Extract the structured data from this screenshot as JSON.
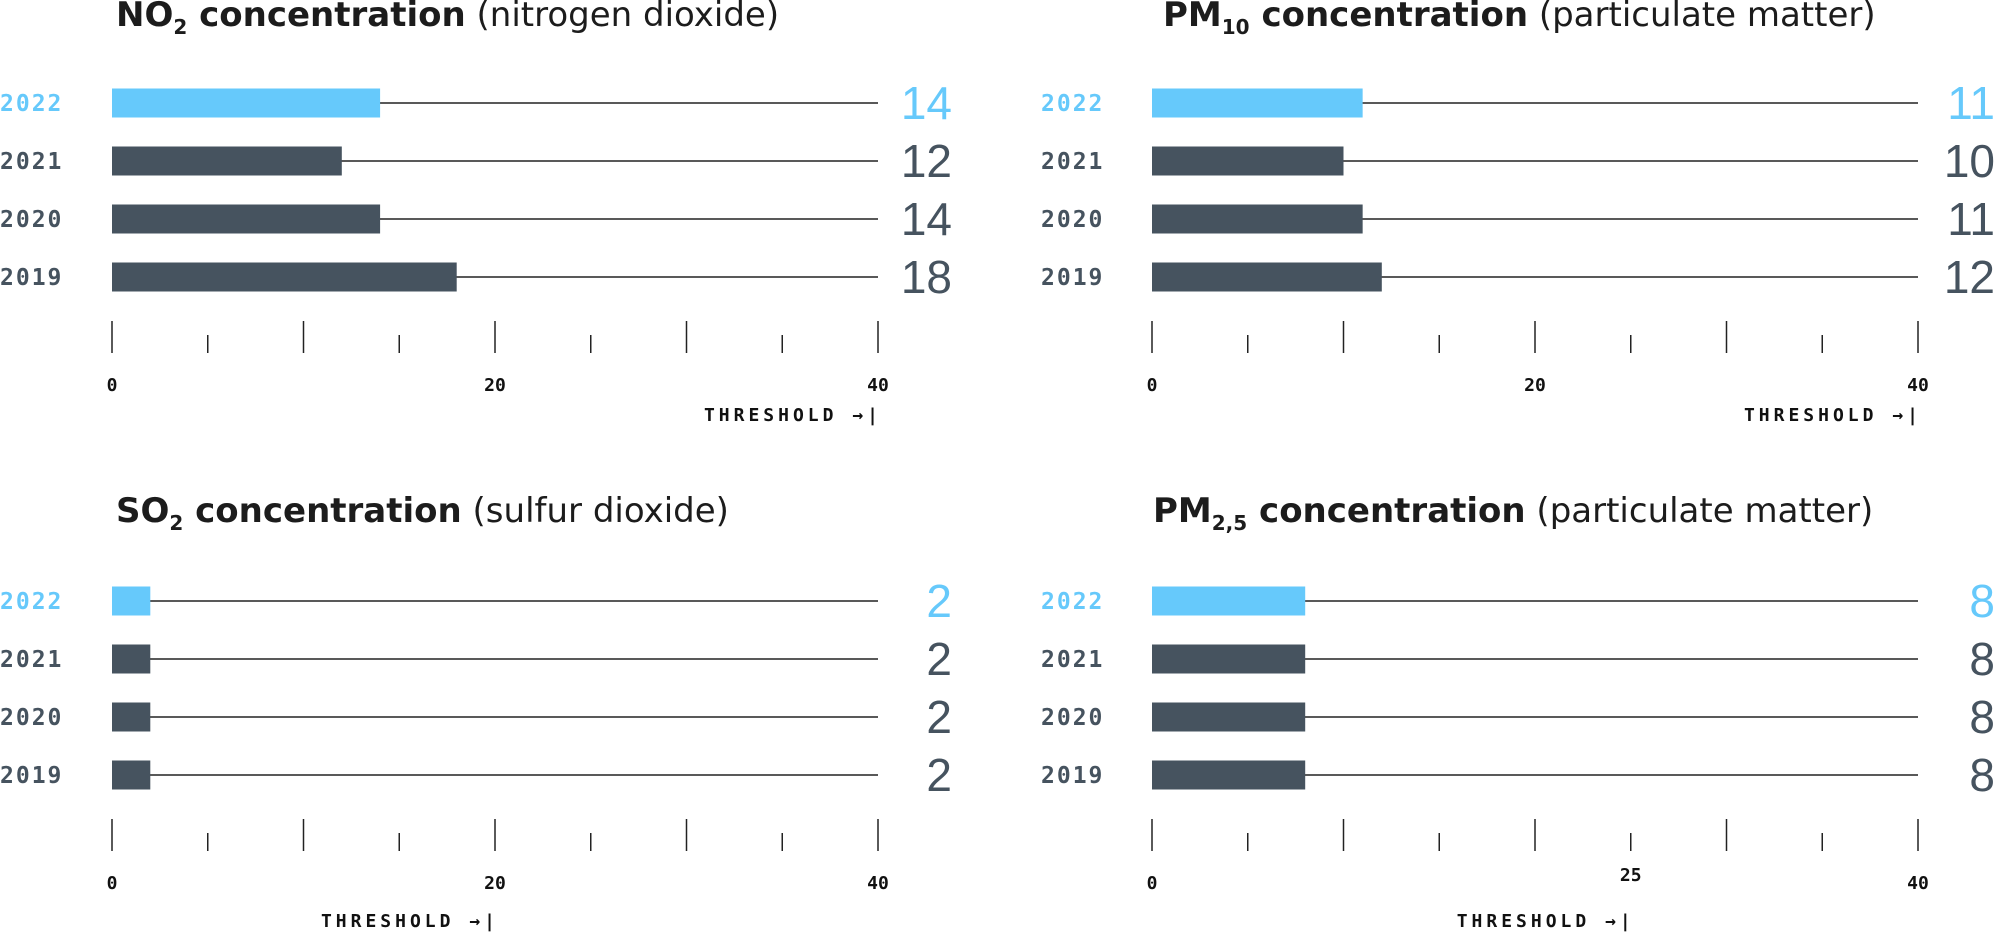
{
  "colors": {
    "highlight": "#66c9fb",
    "bar": "#46535f",
    "track": "#222222",
    "axis": "#222222",
    "title": "#1c1c1c"
  },
  "chart_data": [
    {
      "type": "bar",
      "orientation": "horizontal",
      "title_bold": "NO",
      "title_sub": "2",
      "title_bold_tail": " concentration",
      "title_light": " (nitrogen dioxide)",
      "categories": [
        "2022",
        "2021",
        "2020",
        "2019"
      ],
      "values": [
        14,
        12,
        14,
        18
      ],
      "value_labels": [
        "14",
        "12",
        "14",
        "18"
      ],
      "highlight_index": 0,
      "xlim": [
        0,
        40
      ],
      "tick_labels": [
        {
          "value": 0,
          "text": "0"
        },
        {
          "value": 20,
          "text": "20"
        },
        {
          "value": 40,
          "text": "40"
        }
      ],
      "threshold_value": 40,
      "threshold_label": "THRESHOLD →|"
    },
    {
      "type": "bar",
      "orientation": "horizontal",
      "title_bold": "PM",
      "title_sub": "10",
      "title_bold_tail": " concentration",
      "title_light": " (particulate matter)",
      "categories": [
        "2022",
        "2021",
        "2020",
        "2019"
      ],
      "values": [
        11,
        10,
        11,
        12
      ],
      "value_labels": [
        "11",
        "10",
        "11",
        "12"
      ],
      "highlight_index": 0,
      "xlim": [
        0,
        40
      ],
      "tick_labels": [
        {
          "value": 0,
          "text": "0"
        },
        {
          "value": 20,
          "text": "20"
        },
        {
          "value": 40,
          "text": "40"
        }
      ],
      "threshold_value": 40,
      "threshold_label": "THRESHOLD →|"
    },
    {
      "type": "bar",
      "orientation": "horizontal",
      "title_bold": "SO",
      "title_sub": "2",
      "title_bold_tail": " concentration",
      "title_light": " (sulfur dioxide)",
      "categories": [
        "2022",
        "2021",
        "2020",
        "2019"
      ],
      "values": [
        2,
        2,
        2,
        2
      ],
      "value_labels": [
        "2",
        "2",
        "2",
        "2"
      ],
      "highlight_index": 0,
      "xlim": [
        0,
        40
      ],
      "tick_labels": [
        {
          "value": 0,
          "text": "0"
        },
        {
          "value": 20,
          "text": "20"
        },
        {
          "value": 40,
          "text": "40"
        }
      ],
      "threshold_value": 20,
      "threshold_label": "THRESHOLD →|"
    },
    {
      "type": "bar",
      "orientation": "horizontal",
      "title_bold": "PM",
      "title_sub": "2,5",
      "title_bold_tail": " concentration",
      "title_light": " (particulate matter)",
      "categories": [
        "2022",
        "2021",
        "2020",
        "2019"
      ],
      "values": [
        8,
        8,
        8,
        8
      ],
      "value_labels": [
        "8",
        "8",
        "8",
        "8"
      ],
      "highlight_index": 0,
      "xlim": [
        0,
        40
      ],
      "tick_labels": [
        {
          "value": 0,
          "text": "0"
        },
        {
          "value": 25,
          "text": "25"
        },
        {
          "value": 40,
          "text": "40"
        }
      ],
      "threshold_value": 25,
      "threshold_label": "THRESHOLD →|"
    }
  ]
}
